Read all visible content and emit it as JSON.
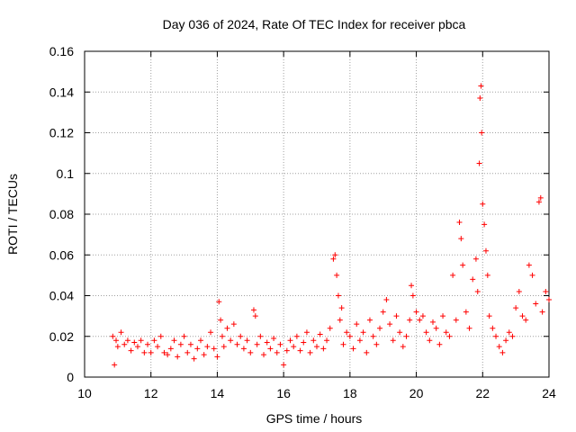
{
  "chart_data": {
    "type": "scatter",
    "title": "Day 036 of 2024, Rate Of TEC Index for receiver pbca",
    "xlabel": "GPS time / hours",
    "ylabel": "ROTI / TECUs",
    "xlim": [
      10,
      24
    ],
    "ylim": [
      0,
      0.16
    ],
    "xticks": [
      10,
      12,
      14,
      16,
      18,
      20,
      22,
      24
    ],
    "xtick_labels": [
      "10",
      "12",
      "14",
      "16",
      "18",
      "20",
      "22",
      "24"
    ],
    "yticks": [
      0,
      0.02,
      0.04,
      0.06,
      0.08,
      0.1,
      0.12,
      0.14,
      0.16
    ],
    "ytick_labels": [
      "0",
      "0.02",
      "0.04",
      "0.06",
      "0.08",
      "0.1",
      "0.12",
      "0.14",
      "0.16"
    ],
    "grid": true,
    "marker": "+",
    "series": [
      {
        "name": "pbca",
        "color": "#ff0000",
        "points": [
          [
            10.85,
            0.02
          ],
          [
            10.9,
            0.006
          ],
          [
            10.95,
            0.018
          ],
          [
            11.0,
            0.015
          ],
          [
            11.1,
            0.022
          ],
          [
            11.2,
            0.016
          ],
          [
            11.3,
            0.018
          ],
          [
            11.4,
            0.013
          ],
          [
            11.5,
            0.017
          ],
          [
            11.6,
            0.015
          ],
          [
            11.7,
            0.018
          ],
          [
            11.8,
            0.012
          ],
          [
            11.9,
            0.016
          ],
          [
            12.0,
            0.012
          ],
          [
            12.1,
            0.018
          ],
          [
            12.2,
            0.015
          ],
          [
            12.3,
            0.02
          ],
          [
            12.4,
            0.012
          ],
          [
            12.5,
            0.011
          ],
          [
            12.6,
            0.014
          ],
          [
            12.7,
            0.018
          ],
          [
            12.8,
            0.01
          ],
          [
            12.9,
            0.016
          ],
          [
            13.0,
            0.02
          ],
          [
            13.1,
            0.012
          ],
          [
            13.2,
            0.016
          ],
          [
            13.3,
            0.009
          ],
          [
            13.4,
            0.014
          ],
          [
            13.5,
            0.018
          ],
          [
            13.6,
            0.011
          ],
          [
            13.7,
            0.015
          ],
          [
            13.8,
            0.022
          ],
          [
            13.9,
            0.014
          ],
          [
            14.0,
            0.01
          ],
          [
            14.05,
            0.037
          ],
          [
            14.1,
            0.028
          ],
          [
            14.15,
            0.02
          ],
          [
            14.2,
            0.015
          ],
          [
            14.3,
            0.024
          ],
          [
            14.4,
            0.018
          ],
          [
            14.5,
            0.026
          ],
          [
            14.6,
            0.016
          ],
          [
            14.7,
            0.02
          ],
          [
            14.8,
            0.014
          ],
          [
            14.9,
            0.018
          ],
          [
            15.0,
            0.012
          ],
          [
            15.1,
            0.033
          ],
          [
            15.15,
            0.03
          ],
          [
            15.2,
            0.016
          ],
          [
            15.3,
            0.02
          ],
          [
            15.4,
            0.011
          ],
          [
            15.5,
            0.017
          ],
          [
            15.6,
            0.014
          ],
          [
            15.7,
            0.019
          ],
          [
            15.8,
            0.012
          ],
          [
            15.9,
            0.016
          ],
          [
            16.0,
            0.006
          ],
          [
            16.1,
            0.013
          ],
          [
            16.2,
            0.018
          ],
          [
            16.3,
            0.015
          ],
          [
            16.4,
            0.02
          ],
          [
            16.5,
            0.013
          ],
          [
            16.6,
            0.017
          ],
          [
            16.7,
            0.022
          ],
          [
            16.8,
            0.012
          ],
          [
            16.9,
            0.018
          ],
          [
            17.0,
            0.015
          ],
          [
            17.1,
            0.021
          ],
          [
            17.2,
            0.014
          ],
          [
            17.3,
            0.018
          ],
          [
            17.4,
            0.024
          ],
          [
            17.5,
            0.058
          ],
          [
            17.55,
            0.06
          ],
          [
            17.6,
            0.05
          ],
          [
            17.65,
            0.04
          ],
          [
            17.7,
            0.028
          ],
          [
            17.75,
            0.034
          ],
          [
            17.8,
            0.016
          ],
          [
            17.9,
            0.022
          ],
          [
            18.0,
            0.02
          ],
          [
            18.1,
            0.014
          ],
          [
            18.2,
            0.026
          ],
          [
            18.3,
            0.018
          ],
          [
            18.4,
            0.022
          ],
          [
            18.5,
            0.012
          ],
          [
            18.6,
            0.028
          ],
          [
            18.7,
            0.02
          ],
          [
            18.8,
            0.016
          ],
          [
            18.9,
            0.024
          ],
          [
            19.0,
            0.032
          ],
          [
            19.1,
            0.038
          ],
          [
            19.2,
            0.026
          ],
          [
            19.3,
            0.018
          ],
          [
            19.4,
            0.03
          ],
          [
            19.5,
            0.022
          ],
          [
            19.6,
            0.015
          ],
          [
            19.7,
            0.02
          ],
          [
            19.8,
            0.028
          ],
          [
            19.85,
            0.045
          ],
          [
            19.9,
            0.04
          ],
          [
            20.0,
            0.032
          ],
          [
            20.1,
            0.028
          ],
          [
            20.2,
            0.03
          ],
          [
            20.3,
            0.022
          ],
          [
            20.4,
            0.018
          ],
          [
            20.5,
            0.027
          ],
          [
            20.6,
            0.024
          ],
          [
            20.7,
            0.016
          ],
          [
            20.8,
            0.03
          ],
          [
            20.9,
            0.022
          ],
          [
            21.0,
            0.02
          ],
          [
            21.1,
            0.05
          ],
          [
            21.2,
            0.028
          ],
          [
            21.3,
            0.076
          ],
          [
            21.35,
            0.068
          ],
          [
            21.4,
            0.055
          ],
          [
            21.5,
            0.032
          ],
          [
            21.6,
            0.024
          ],
          [
            21.7,
            0.048
          ],
          [
            21.8,
            0.058
          ],
          [
            21.85,
            0.042
          ],
          [
            21.9,
            0.105
          ],
          [
            21.92,
            0.137
          ],
          [
            21.95,
            0.143
          ],
          [
            21.97,
            0.12
          ],
          [
            22.0,
            0.085
          ],
          [
            22.05,
            0.075
          ],
          [
            22.1,
            0.062
          ],
          [
            22.15,
            0.05
          ],
          [
            22.2,
            0.03
          ],
          [
            22.3,
            0.024
          ],
          [
            22.4,
            0.02
          ],
          [
            22.5,
            0.015
          ],
          [
            22.6,
            0.012
          ],
          [
            22.7,
            0.018
          ],
          [
            22.8,
            0.022
          ],
          [
            22.9,
            0.02
          ],
          [
            23.0,
            0.034
          ],
          [
            23.1,
            0.042
          ],
          [
            23.2,
            0.03
          ],
          [
            23.3,
            0.028
          ],
          [
            23.4,
            0.055
          ],
          [
            23.5,
            0.05
          ],
          [
            23.6,
            0.036
          ],
          [
            23.7,
            0.086
          ],
          [
            23.75,
            0.088
          ],
          [
            23.8,
            0.032
          ],
          [
            23.9,
            0.042
          ],
          [
            24.0,
            0.038
          ]
        ]
      }
    ]
  }
}
